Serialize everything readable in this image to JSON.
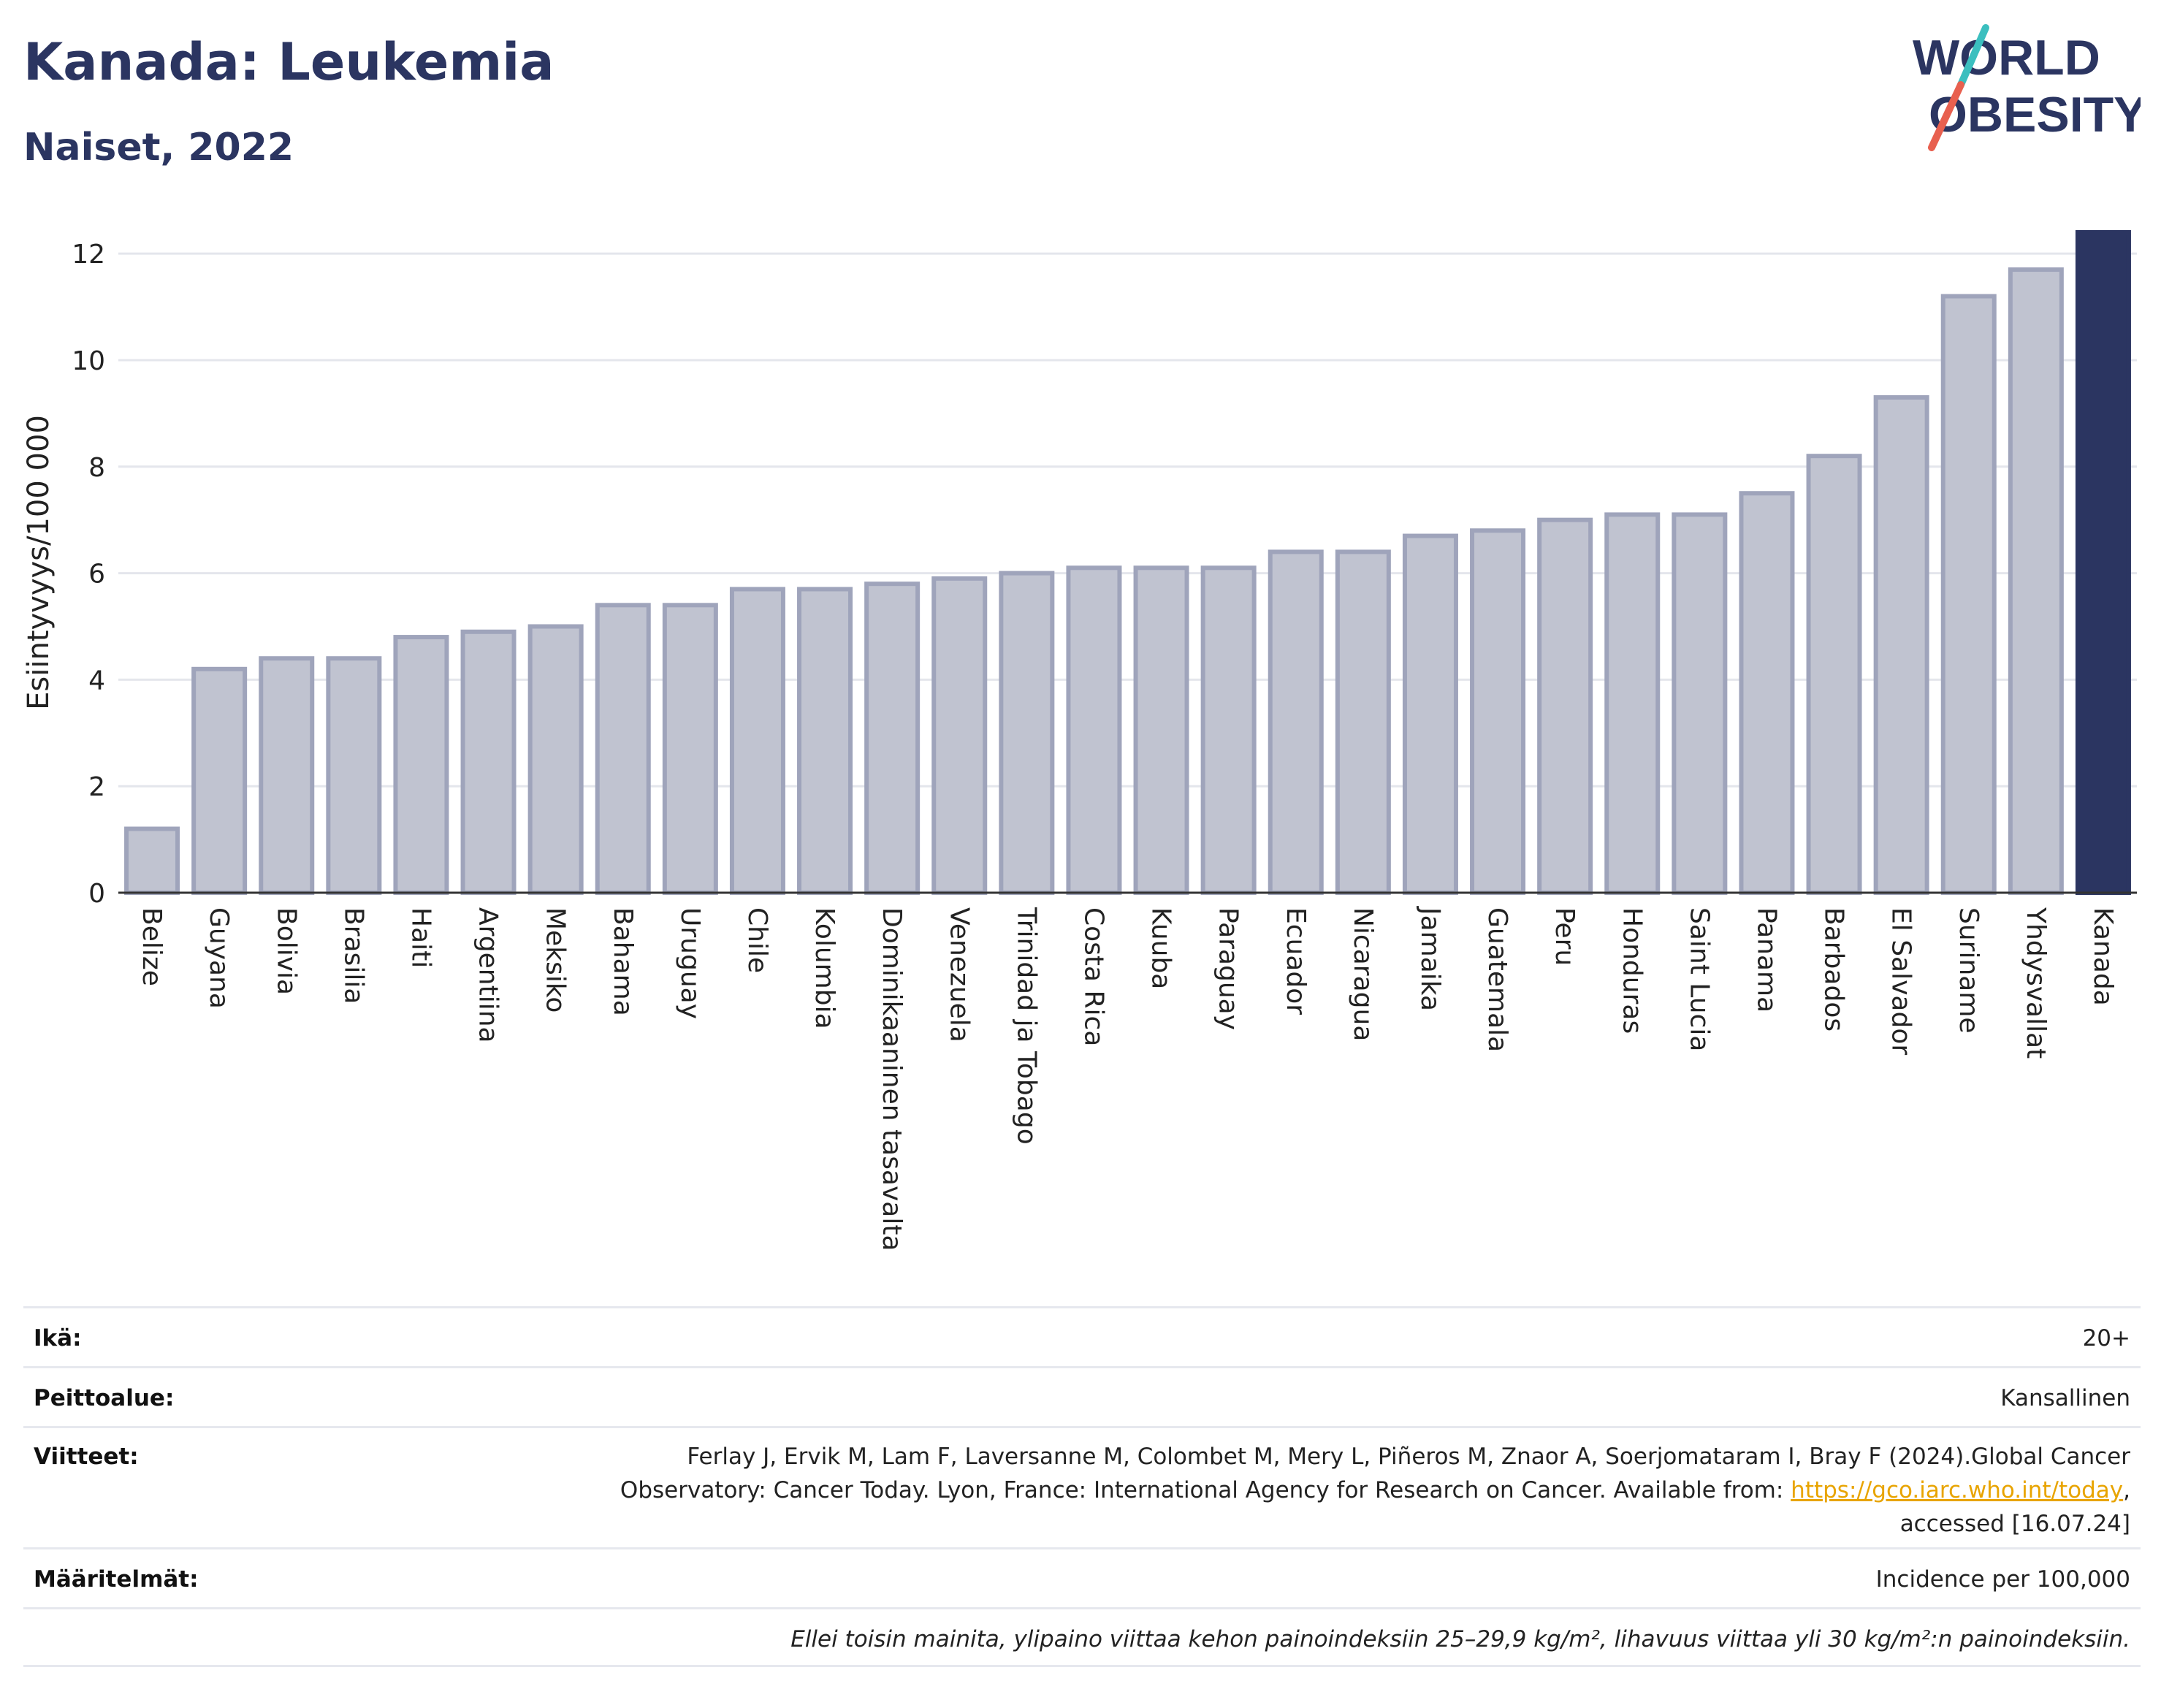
{
  "header": {
    "title": "Kanada: Leukemia",
    "subtitle": "Naiset, 2022"
  },
  "logo": {
    "line1": "WORLD",
    "line2": "OBESITY",
    "colors": {
      "text": "#2b3561",
      "slash_teal": "#3bbfbf",
      "slash_coral": "#e8604f"
    }
  },
  "chart_data": {
    "type": "bar",
    "ylabel": "Esiintyvyys/100 000",
    "xlabel": "",
    "ylim": [
      0,
      12.4
    ],
    "yticks": [
      0,
      2,
      4,
      6,
      8,
      10,
      12
    ],
    "grid": true,
    "categories": [
      "Belize",
      "Guyana",
      "Bolivia",
      "Brasilia",
      "Haiti",
      "Argentiina",
      "Meksiko",
      "Bahama",
      "Uruguay",
      "Chile",
      "Kolumbia",
      "Dominikaaninen tasavalta",
      "Venezuela",
      "Trinidad ja Tobago",
      "Costa Rica",
      "Kuuba",
      "Paraguay",
      "Ecuador",
      "Nicaragua",
      "Jamaika",
      "Guatemala",
      "Peru",
      "Honduras",
      "Saint Lucia",
      "Panama",
      "Barbados",
      "El Salvador",
      "Suriname",
      "Yhdysvallat",
      "Kanada"
    ],
    "values": [
      1.2,
      4.2,
      4.4,
      4.4,
      4.8,
      4.9,
      5.0,
      5.4,
      5.4,
      5.7,
      5.7,
      5.8,
      5.9,
      6.0,
      6.1,
      6.1,
      6.1,
      6.4,
      6.4,
      6.7,
      6.8,
      7.0,
      7.1,
      7.1,
      7.5,
      8.2,
      9.3,
      11.2,
      11.7,
      12.4
    ],
    "highlight": "Kanada",
    "colors": {
      "bar": "#c0c3d0",
      "bar_border": "#9fa4bb",
      "highlight": "#2b3561"
    }
  },
  "meta": {
    "age_label": "Ikä:",
    "age_value": "20+",
    "coverage_label": "Peittoalue:",
    "coverage_value": "Kansallinen",
    "refs_label": "Viitteet:",
    "refs_line1": "Ferlay J, Ervik M, Lam F, Laversanne M, Colombet M, Mery L, Piñeros M, Znaor A, Soerjomataram I, Bray F (2024).Global Cancer",
    "refs_line2": "Observatory: Cancer Today. Lyon, France: International Agency for Research on Cancer. Available from: ",
    "refs_link": "https://gco.iarc.who.int/today",
    "refs_comma": ",",
    "refs_line3": "accessed [16.07.24]",
    "defs_label": "Määritelmät:",
    "defs_value": "Incidence per 100,000",
    "note": "Ellei toisin mainita, ylipaino viittaa kehon painoindeksiin 25–29,9 kg/m², lihavuus viittaa yli 30 kg/m²:n painoindeksiin."
  }
}
